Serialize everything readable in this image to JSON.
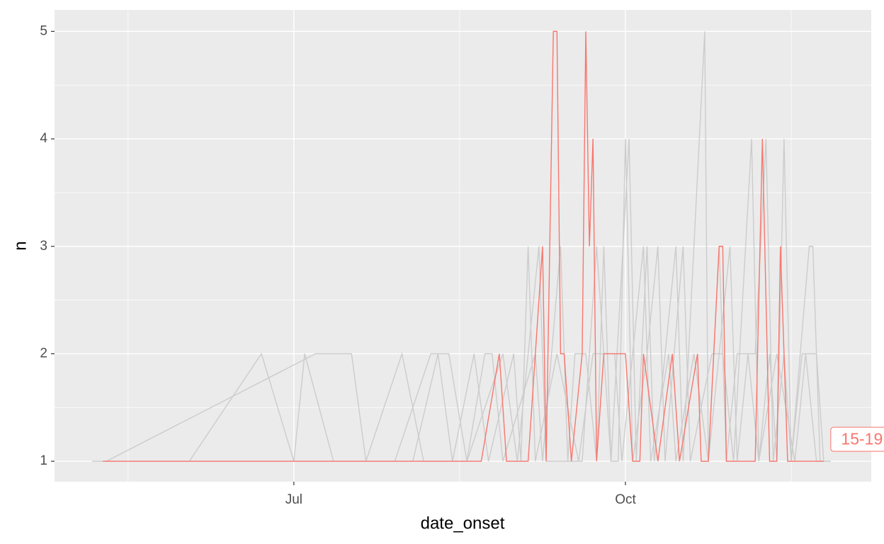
{
  "chart_data": {
    "type": "line",
    "x_label": "date_onset",
    "y_label": "n",
    "xlim": [
      115.6,
      342.2
    ],
    "ylim": [
      0.81,
      5.2
    ],
    "xticks": [
      {
        "value": 182,
        "label": "Jul"
      },
      {
        "value": 274,
        "label": "Oct"
      }
    ],
    "x_minor_ticks": [
      136,
      228,
      320
    ],
    "yticks": [
      1,
      2,
      3,
      4,
      5
    ],
    "y_minor_ticks": [
      1.5,
      2.5,
      3.5,
      4.5
    ],
    "grid": true,
    "series": [
      {
        "name": "15-19",
        "color": "#f8766d",
        "x": [
          129,
          234,
          239,
          241,
          247,
          251,
          252,
          254,
          255,
          256,
          257,
          259,
          262,
          263,
          264,
          265,
          266,
          268,
          274,
          276,
          278,
          279,
          283,
          287,
          289,
          294,
          295,
          297,
          300,
          301,
          302,
          310,
          312,
          314,
          316,
          317,
          319,
          329
        ],
        "values": [
          1,
          1,
          2,
          1,
          1,
          3,
          1,
          5,
          5,
          2,
          2,
          1,
          2,
          5,
          3,
          4,
          1,
          2,
          2,
          1,
          1,
          2,
          1,
          2,
          1,
          2,
          1,
          1,
          3,
          3,
          1,
          1,
          4,
          1,
          1,
          3,
          1,
          1
        ]
      },
      {
        "color": "#cccccc",
        "x": [
          126,
          153,
          173,
          182,
          185,
          193,
          202,
          212,
          218,
          230,
          240,
          244,
          250,
          252,
          262,
          266,
          270,
          275,
          277,
          280,
          282,
          288,
          290,
          296,
          297,
          300,
          302,
          305,
          310,
          313,
          315,
          318,
          320,
          325,
          326,
          328,
          331
        ],
        "values": [
          1,
          1,
          2,
          1,
          2,
          1,
          1,
          2,
          1,
          1,
          2,
          1,
          3,
          1,
          1,
          3,
          1,
          4,
          1,
          3,
          1,
          3,
          1,
          5,
          1,
          3,
          1,
          2,
          2,
          4,
          1,
          2,
          1,
          3,
          3,
          1,
          1
        ]
      },
      {
        "color": "#cccccc",
        "x": [
          130,
          188,
          195,
          198,
          202,
          210,
          220,
          225,
          230,
          235,
          237,
          240,
          249,
          251,
          256,
          258,
          260,
          263,
          266,
          268,
          270,
          272,
          274,
          276,
          280,
          283,
          285,
          290,
          292,
          298,
          301,
          304,
          309,
          311,
          314,
          316,
          318,
          320,
          323,
          327,
          329
        ],
        "values": [
          1,
          2,
          2,
          2,
          1,
          1,
          2,
          2,
          1,
          2,
          2,
          1,
          2,
          1,
          3,
          1,
          2,
          2,
          1,
          3,
          1,
          1,
          4,
          1,
          2,
          3,
          1,
          3,
          1,
          2,
          2,
          1,
          4,
          1,
          2,
          1,
          4,
          1,
          2,
          2,
          1
        ]
      },
      {
        "color": "#cccccc",
        "x": [
          135,
          215,
          222,
          226,
          232,
          236,
          243,
          245,
          247,
          249,
          255,
          261,
          265,
          271,
          273,
          279,
          281,
          286,
          288,
          293,
          297,
          300,
          303,
          305,
          308,
          311,
          316,
          321,
          324,
          327,
          330
        ],
        "values": [
          1,
          1,
          2,
          1,
          2,
          1,
          2,
          1,
          3,
          1,
          2,
          1,
          2,
          2,
          1,
          3,
          1,
          2,
          1,
          2,
          1,
          2,
          3,
          1,
          2,
          1,
          2,
          1,
          2,
          1,
          1
        ]
      }
    ]
  }
}
